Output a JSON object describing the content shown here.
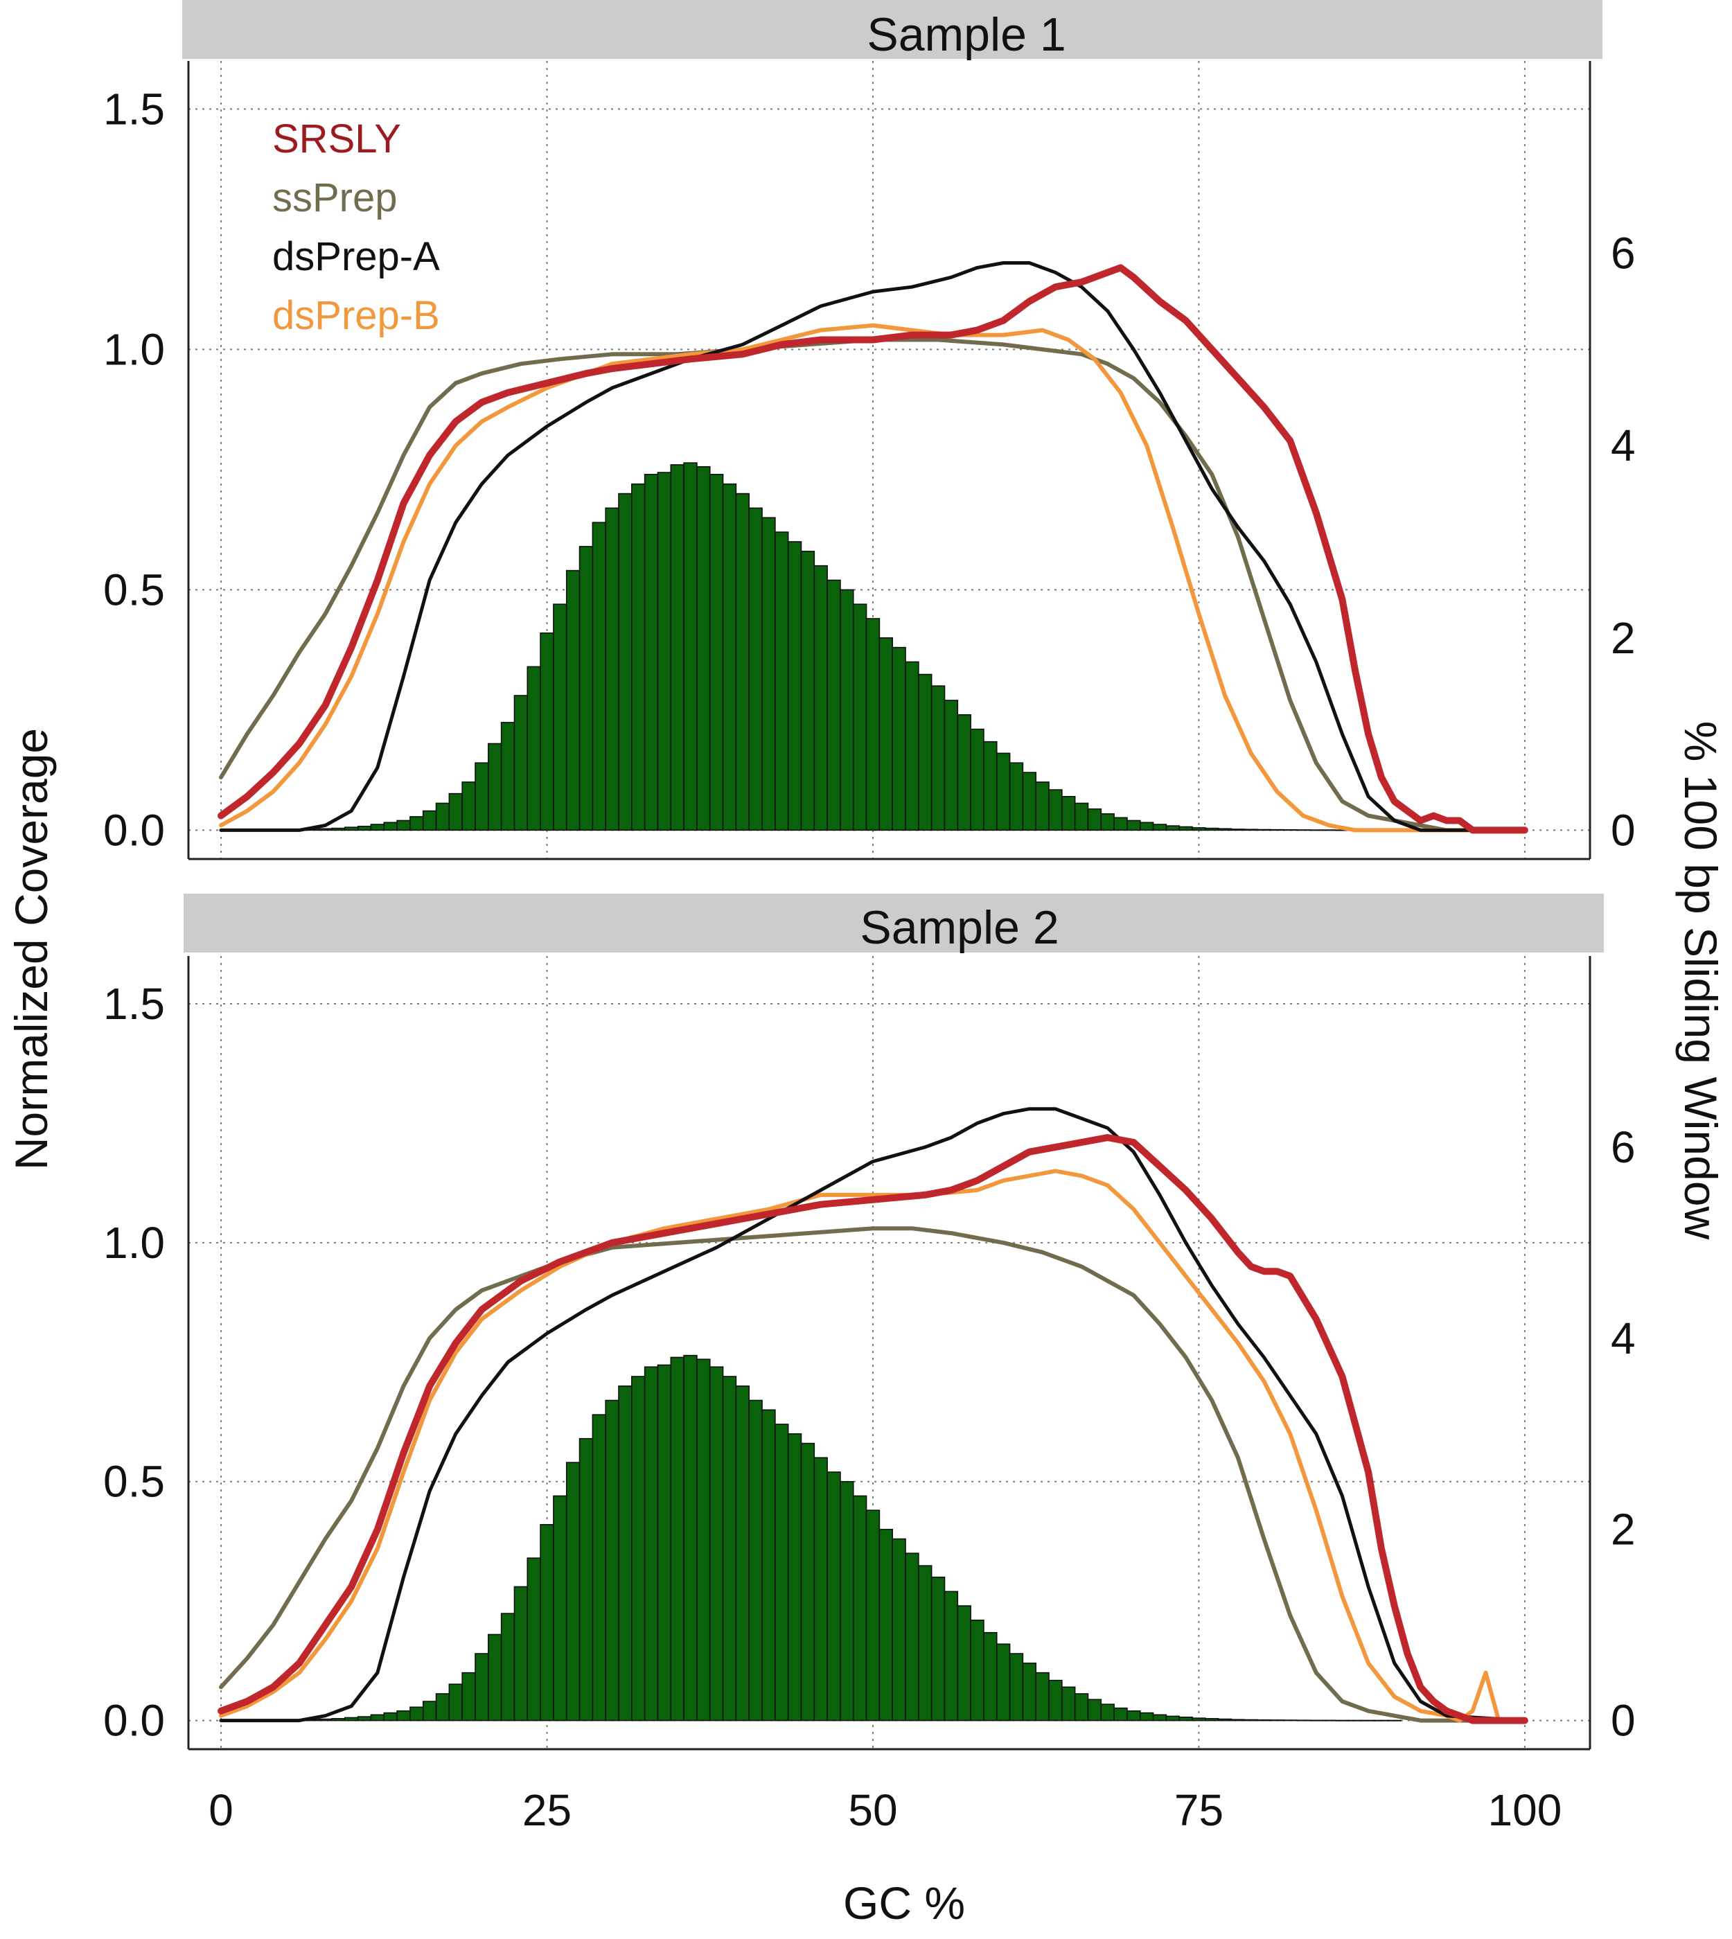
{
  "x_axis_title": "GC %",
  "y_axis_left_title": "Normalized Coverage",
  "y_axis_right_title": "% 100 bp Sliding Window",
  "x_ticks": [
    "0",
    "25",
    "50",
    "75",
    "100"
  ],
  "y_left_ticks": [
    "0.0",
    "0.5",
    "1.0",
    "1.5"
  ],
  "y_right_ticks": [
    "0",
    "2",
    "4",
    "6"
  ],
  "colors": {
    "SRSLY": "#c0272d",
    "SRSLY_text": "#9b1b20",
    "ssPrep": "#726c4f",
    "dsPrep-A": "#111111",
    "dsPrep-B": "#f3973d",
    "histogram": "#0a620a",
    "strip": "#cccccc"
  },
  "legend": [
    "SRSLY",
    "ssPrep",
    "dsPrep-A",
    "dsPrep-B"
  ],
  "chart_data": [
    {
      "type": "line",
      "title": "Sample 1",
      "xlabel": "GC %",
      "ylabel": "Normalized Coverage",
      "y2label": "% 100 bp Sliding Window",
      "xlim": [
        -2.5,
        105
      ],
      "ylim": [
        -0.06,
        1.6
      ],
      "y2lim": [
        -0.3,
        8
      ],
      "grid": true,
      "legend_position": "top-left",
      "series": [
        {
          "name": "SRSLY",
          "x": [
            0,
            2,
            4,
            6,
            8,
            10,
            12,
            14,
            16,
            18,
            20,
            22,
            25,
            28,
            30,
            33,
            36,
            40,
            43,
            46,
            50,
            53,
            56,
            58,
            60,
            62,
            64,
            66,
            68,
            69,
            70,
            72,
            74,
            76,
            78,
            80,
            82,
            84,
            86,
            87,
            88,
            89,
            90,
            91,
            92,
            93,
            94,
            95,
            96,
            97,
            98,
            100
          ],
          "y": [
            0.03,
            0.07,
            0.12,
            0.18,
            0.26,
            0.38,
            0.52,
            0.68,
            0.78,
            0.85,
            0.89,
            0.91,
            0.93,
            0.95,
            0.96,
            0.97,
            0.98,
            0.99,
            1.01,
            1.02,
            1.02,
            1.03,
            1.03,
            1.04,
            1.06,
            1.1,
            1.13,
            1.14,
            1.16,
            1.17,
            1.15,
            1.1,
            1.06,
            1.0,
            0.94,
            0.88,
            0.81,
            0.66,
            0.48,
            0.33,
            0.2,
            0.11,
            0.06,
            0.04,
            0.02,
            0.03,
            0.02,
            0.02,
            0.0,
            0.0,
            0.0,
            0.0
          ]
        },
        {
          "name": "ssPrep",
          "x": [
            0,
            2,
            4,
            6,
            8,
            10,
            12,
            14,
            16,
            18,
            20,
            23,
            26,
            30,
            35,
            40,
            45,
            50,
            55,
            60,
            63,
            66,
            68,
            70,
            72,
            74,
            76,
            78,
            80,
            82,
            84,
            86,
            88,
            90,
            92,
            94,
            96,
            100
          ],
          "y": [
            0.11,
            0.2,
            0.28,
            0.37,
            0.45,
            0.55,
            0.66,
            0.78,
            0.88,
            0.93,
            0.95,
            0.97,
            0.98,
            0.99,
            0.99,
            1.0,
            1.01,
            1.02,
            1.02,
            1.01,
            1.0,
            0.99,
            0.97,
            0.94,
            0.89,
            0.82,
            0.74,
            0.61,
            0.44,
            0.27,
            0.14,
            0.06,
            0.03,
            0.02,
            0.01,
            0.0,
            0.0,
            0.0
          ]
        },
        {
          "name": "dsPrep-A",
          "x": [
            0,
            6,
            8,
            10,
            12,
            14,
            16,
            18,
            20,
            22,
            25,
            28,
            30,
            33,
            36,
            40,
            43,
            46,
            50,
            53,
            56,
            58,
            60,
            62,
            64,
            66,
            68,
            70,
            72,
            74,
            76,
            78,
            80,
            82,
            84,
            86,
            88,
            90,
            92,
            94,
            100
          ],
          "y": [
            0.0,
            0.0,
            0.01,
            0.04,
            0.13,
            0.32,
            0.52,
            0.64,
            0.72,
            0.78,
            0.84,
            0.89,
            0.92,
            0.95,
            0.98,
            1.01,
            1.05,
            1.09,
            1.12,
            1.13,
            1.15,
            1.17,
            1.18,
            1.18,
            1.16,
            1.13,
            1.08,
            1.0,
            0.91,
            0.81,
            0.71,
            0.63,
            0.56,
            0.47,
            0.35,
            0.2,
            0.07,
            0.02,
            0.0,
            0.0,
            0.0
          ]
        },
        {
          "name": "dsPrep-B",
          "x": [
            0,
            2,
            4,
            6,
            8,
            10,
            12,
            14,
            16,
            18,
            20,
            22,
            25,
            28,
            30,
            33,
            36,
            40,
            43,
            46,
            50,
            53,
            56,
            60,
            63,
            65,
            67,
            69,
            71,
            73,
            75,
            77,
            79,
            81,
            83,
            85,
            87,
            89,
            91,
            93,
            100
          ],
          "y": [
            0.01,
            0.04,
            0.08,
            0.14,
            0.22,
            0.32,
            0.45,
            0.6,
            0.72,
            0.8,
            0.85,
            0.88,
            0.92,
            0.95,
            0.97,
            0.98,
            0.99,
            1.0,
            1.02,
            1.04,
            1.05,
            1.04,
            1.03,
            1.03,
            1.04,
            1.02,
            0.98,
            0.91,
            0.8,
            0.63,
            0.45,
            0.28,
            0.16,
            0.08,
            0.03,
            0.01,
            0.0,
            0.0,
            0.0,
            0.0,
            0.0
          ]
        }
      ],
      "histogram": {
        "name": "% 100 bp Sliding Window",
        "x": [
          5,
          6,
          7,
          8,
          9,
          10,
          11,
          12,
          13,
          14,
          15,
          16,
          17,
          18,
          19,
          20,
          21,
          22,
          23,
          24,
          25,
          26,
          27,
          28,
          29,
          30,
          31,
          32,
          33,
          34,
          35,
          36,
          37,
          38,
          39,
          40,
          41,
          42,
          43,
          44,
          45,
          46,
          47,
          48,
          49,
          50,
          51,
          52,
          53,
          54,
          55,
          56,
          57,
          58,
          59,
          60,
          61,
          62,
          63,
          64,
          65,
          66,
          67,
          68,
          69,
          70,
          71,
          72,
          73,
          74,
          75,
          76,
          77,
          78,
          79,
          80,
          81,
          82,
          83,
          84,
          85,
          86,
          87,
          88,
          89,
          90
        ],
        "values": [
          0.005,
          0.01,
          0.01,
          0.015,
          0.02,
          0.03,
          0.04,
          0.06,
          0.08,
          0.1,
          0.14,
          0.2,
          0.28,
          0.38,
          0.5,
          0.7,
          0.9,
          1.12,
          1.4,
          1.7,
          2.05,
          2.35,
          2.7,
          2.95,
          3.2,
          3.35,
          3.5,
          3.6,
          3.7,
          3.72,
          3.8,
          3.82,
          3.78,
          3.7,
          3.6,
          3.5,
          3.35,
          3.25,
          3.1,
          3.0,
          2.9,
          2.75,
          2.6,
          2.5,
          2.35,
          2.2,
          2.0,
          1.9,
          1.75,
          1.62,
          1.5,
          1.35,
          1.2,
          1.05,
          0.92,
          0.8,
          0.7,
          0.6,
          0.5,
          0.42,
          0.35,
          0.28,
          0.22,
          0.17,
          0.13,
          0.1,
          0.08,
          0.06,
          0.045,
          0.035,
          0.025,
          0.02,
          0.015,
          0.01,
          0.008,
          0.006,
          0.005,
          0.004,
          0.003,
          0.002,
          0.002,
          0.001,
          0.001,
          0.001,
          0.001,
          0.001
        ]
      }
    },
    {
      "type": "line",
      "title": "Sample 2",
      "xlabel": "GC %",
      "ylabel": "Normalized Coverage",
      "y2label": "% 100 bp Sliding Window",
      "xlim": [
        -2.5,
        105
      ],
      "ylim": [
        -0.06,
        1.6
      ],
      "y2lim": [
        -0.3,
        8
      ],
      "grid": true,
      "series": [
        {
          "name": "SRSLY",
          "x": [
            0,
            2,
            4,
            6,
            8,
            10,
            12,
            14,
            16,
            18,
            20,
            23,
            26,
            30,
            34,
            38,
            42,
            46,
            50,
            54,
            56,
            58,
            60,
            62,
            64,
            66,
            68,
            70,
            72,
            74,
            76,
            78,
            79,
            80,
            81,
            82,
            84,
            86,
            88,
            89,
            90,
            91,
            92,
            93,
            94,
            95,
            96,
            97,
            98,
            100
          ],
          "y": [
            0.02,
            0.04,
            0.07,
            0.12,
            0.2,
            0.28,
            0.4,
            0.56,
            0.7,
            0.79,
            0.86,
            0.92,
            0.96,
            1.0,
            1.02,
            1.04,
            1.06,
            1.08,
            1.09,
            1.1,
            1.11,
            1.13,
            1.16,
            1.19,
            1.2,
            1.21,
            1.22,
            1.21,
            1.16,
            1.11,
            1.05,
            0.98,
            0.95,
            0.94,
            0.94,
            0.93,
            0.84,
            0.72,
            0.52,
            0.36,
            0.24,
            0.14,
            0.07,
            0.04,
            0.02,
            0.01,
            0.0,
            0.0,
            0.0,
            0.0
          ]
        },
        {
          "name": "ssPrep",
          "x": [
            0,
            2,
            4,
            6,
            8,
            10,
            12,
            14,
            16,
            18,
            20,
            23,
            26,
            30,
            35,
            40,
            45,
            50,
            53,
            56,
            60,
            63,
            66,
            68,
            70,
            72,
            74,
            76,
            78,
            80,
            82,
            84,
            86,
            88,
            90,
            92,
            94,
            96,
            100
          ],
          "y": [
            0.07,
            0.13,
            0.2,
            0.29,
            0.38,
            0.46,
            0.57,
            0.7,
            0.8,
            0.86,
            0.9,
            0.93,
            0.96,
            0.99,
            1.0,
            1.01,
            1.02,
            1.03,
            1.03,
            1.02,
            1.0,
            0.98,
            0.95,
            0.92,
            0.89,
            0.83,
            0.76,
            0.67,
            0.55,
            0.38,
            0.22,
            0.1,
            0.04,
            0.02,
            0.01,
            0.0,
            0.0,
            0.0,
            0.0
          ]
        },
        {
          "name": "dsPrep-A",
          "x": [
            0,
            6,
            8,
            10,
            12,
            14,
            16,
            18,
            20,
            22,
            25,
            28,
            30,
            34,
            38,
            42,
            46,
            50,
            54,
            56,
            58,
            60,
            62,
            64,
            66,
            68,
            70,
            72,
            74,
            76,
            78,
            80,
            82,
            84,
            86,
            88,
            90,
            92,
            94,
            100
          ],
          "y": [
            0.0,
            0.0,
            0.01,
            0.03,
            0.1,
            0.3,
            0.48,
            0.6,
            0.68,
            0.75,
            0.81,
            0.86,
            0.89,
            0.94,
            0.99,
            1.05,
            1.11,
            1.17,
            1.2,
            1.22,
            1.25,
            1.27,
            1.28,
            1.28,
            1.26,
            1.24,
            1.19,
            1.1,
            1.0,
            0.91,
            0.83,
            0.76,
            0.68,
            0.6,
            0.47,
            0.28,
            0.12,
            0.04,
            0.01,
            0.0
          ]
        },
        {
          "name": "dsPrep-B",
          "x": [
            0,
            2,
            4,
            6,
            8,
            10,
            12,
            14,
            16,
            18,
            20,
            23,
            26,
            30,
            34,
            38,
            42,
            46,
            50,
            54,
            58,
            60,
            62,
            64,
            66,
            68,
            70,
            72,
            74,
            76,
            78,
            80,
            82,
            84,
            86,
            88,
            90,
            92,
            94,
            95,
            96,
            97,
            98,
            100
          ],
          "y": [
            0.01,
            0.03,
            0.06,
            0.1,
            0.17,
            0.25,
            0.36,
            0.52,
            0.67,
            0.77,
            0.84,
            0.9,
            0.95,
            1.0,
            1.03,
            1.05,
            1.07,
            1.1,
            1.1,
            1.1,
            1.11,
            1.13,
            1.14,
            1.15,
            1.14,
            1.12,
            1.07,
            1.0,
            0.93,
            0.86,
            0.79,
            0.71,
            0.6,
            0.44,
            0.26,
            0.12,
            0.05,
            0.02,
            0.01,
            0.0,
            0.02,
            0.1,
            0.0,
            0.0
          ]
        }
      ],
      "histogram": {
        "name": "% 100 bp Sliding Window",
        "x": [
          5,
          6,
          7,
          8,
          9,
          10,
          11,
          12,
          13,
          14,
          15,
          16,
          17,
          18,
          19,
          20,
          21,
          22,
          23,
          24,
          25,
          26,
          27,
          28,
          29,
          30,
          31,
          32,
          33,
          34,
          35,
          36,
          37,
          38,
          39,
          40,
          41,
          42,
          43,
          44,
          45,
          46,
          47,
          48,
          49,
          50,
          51,
          52,
          53,
          54,
          55,
          56,
          57,
          58,
          59,
          60,
          61,
          62,
          63,
          64,
          65,
          66,
          67,
          68,
          69,
          70,
          71,
          72,
          73,
          74,
          75,
          76,
          77,
          78,
          79,
          80,
          81,
          82,
          83,
          84,
          85,
          86,
          87,
          88,
          89,
          90
        ],
        "values": [
          0.005,
          0.01,
          0.01,
          0.015,
          0.02,
          0.03,
          0.04,
          0.06,
          0.08,
          0.1,
          0.14,
          0.2,
          0.28,
          0.38,
          0.5,
          0.7,
          0.9,
          1.12,
          1.4,
          1.7,
          2.05,
          2.35,
          2.7,
          2.95,
          3.2,
          3.35,
          3.5,
          3.6,
          3.7,
          3.72,
          3.8,
          3.82,
          3.78,
          3.7,
          3.6,
          3.5,
          3.35,
          3.25,
          3.1,
          3.0,
          2.9,
          2.75,
          2.6,
          2.5,
          2.35,
          2.2,
          2.0,
          1.9,
          1.75,
          1.62,
          1.5,
          1.35,
          1.2,
          1.05,
          0.92,
          0.8,
          0.7,
          0.6,
          0.5,
          0.42,
          0.35,
          0.28,
          0.22,
          0.17,
          0.13,
          0.1,
          0.08,
          0.06,
          0.045,
          0.035,
          0.025,
          0.02,
          0.015,
          0.01,
          0.008,
          0.006,
          0.005,
          0.004,
          0.003,
          0.002,
          0.002,
          0.001,
          0.001,
          0.001,
          0.001,
          0.001
        ]
      }
    }
  ]
}
